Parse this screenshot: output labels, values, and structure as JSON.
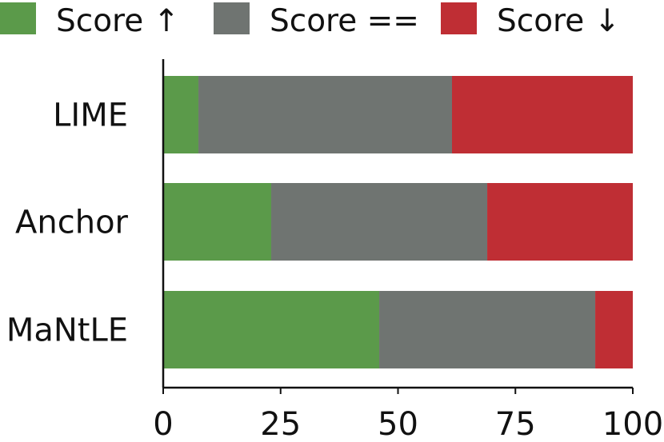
{
  "chart_data": {
    "type": "bar",
    "orientation": "horizontal",
    "stacked": true,
    "categories": [
      "LIME",
      "Anchor",
      "MaNtLE"
    ],
    "series": [
      {
        "name": "Score ↑",
        "color": "#5b9a4a",
        "values": [
          7.5,
          23,
          46
        ]
      },
      {
        "name": "Score ==",
        "color": "#6f7471",
        "values": [
          54,
          46,
          46
        ]
      },
      {
        "name": "Score ↓",
        "color": "#bf2e34",
        "values": [
          38.5,
          31,
          8
        ]
      }
    ],
    "xlim": [
      0,
      100
    ],
    "xticks": [
      "0",
      "25",
      "50",
      "75",
      "100"
    ],
    "title": "",
    "xlabel": "",
    "ylabel": "",
    "legend": "top",
    "grid": false
  }
}
